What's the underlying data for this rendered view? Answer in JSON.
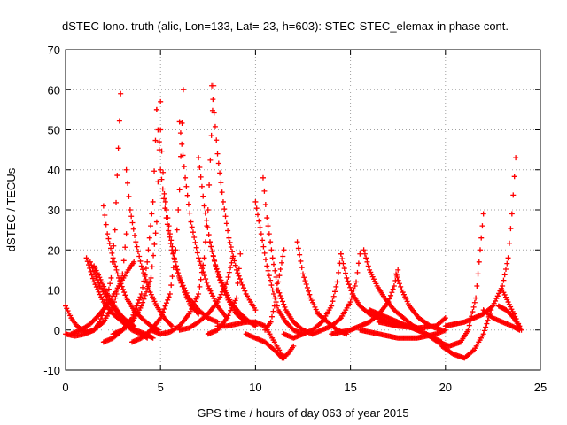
{
  "chart_data": {
    "type": "scatter",
    "title": "dSTEC Iono. truth (alic, Lon=133, Lat=-23, h=603): STEC-STEC_elemax in phase cont.",
    "xlabel": "GPS time / hours of day 063 of year 2015",
    "ylabel": "dSTEC  / TECUs",
    "xlim": [
      0,
      25
    ],
    "ylim": [
      -10,
      70
    ],
    "xticks": [
      0,
      5,
      10,
      15,
      20,
      25
    ],
    "yticks": [
      -10,
      0,
      10,
      20,
      30,
      40,
      50,
      60,
      70
    ],
    "grid": true,
    "marker": "plus",
    "color": "#ff0000",
    "series": [
      {
        "x": [
          0.0,
          0.3,
          0.6,
          0.9,
          1.2,
          1.5,
          1.8,
          2.1,
          2.4,
          2.6,
          2.9
        ],
        "values": [
          6,
          3,
          1,
          0,
          -0.5,
          0,
          2,
          6,
          13,
          25,
          59
        ]
      },
      {
        "x": [
          0.0,
          0.5,
          1.0,
          1.5,
          2.0,
          2.5,
          3.0,
          3.2
        ],
        "values": [
          -1,
          -1.5,
          -1,
          0,
          2,
          6,
          14,
          24
        ]
      },
      {
        "x": [
          0.3,
          0.8,
          1.3,
          1.8,
          2.3,
          2.8,
          3.3,
          3.6
        ],
        "values": [
          -1,
          0,
          1.5,
          4,
          7,
          11,
          15,
          17
        ]
      },
      {
        "x": [
          1.1,
          1.5,
          2.0,
          2.5,
          3.0,
          3.5,
          4.0,
          4.3
        ],
        "values": [
          18,
          12,
          7,
          4,
          2,
          0,
          -1,
          -2
        ]
      },
      {
        "x": [
          1.3,
          1.8,
          2.3,
          2.8,
          3.3,
          3.6
        ],
        "values": [
          17,
          11,
          7,
          4,
          2,
          1
        ]
      },
      {
        "x": [
          1.5,
          1.9,
          2.3,
          2.7,
          3.2,
          3.7,
          4.2,
          4.6
        ],
        "values": [
          16,
          12,
          8,
          5,
          2,
          0,
          -1,
          -2
        ]
      },
      {
        "x": [
          2.0,
          2.2,
          2.5,
          2.8,
          3.2,
          3.6,
          4.0,
          4.5,
          4.9
        ],
        "values": [
          31,
          24,
          18,
          13,
          8,
          5,
          3,
          1,
          0
        ]
      },
      {
        "x": [
          3.2,
          3.4,
          3.7,
          4.0,
          4.4,
          4.8,
          5.2,
          5.6
        ],
        "values": [
          40,
          30,
          22,
          16,
          10,
          6,
          3,
          1
        ]
      },
      {
        "x": [
          2.0,
          2.5,
          3.0,
          3.5,
          4.0,
          4.3,
          4.6,
          4.8
        ],
        "values": [
          -3,
          -2,
          0,
          3,
          9,
          17,
          32,
          55
        ]
      },
      {
        "x": [
          2.5,
          3.0,
          3.5,
          4.0,
          4.5,
          4.8,
          5.0
        ],
        "values": [
          -1,
          0,
          2,
          6,
          13,
          27,
          57
        ]
      },
      {
        "x": [
          4.8,
          5.0,
          5.3,
          5.6,
          6.0,
          6.5,
          7.0,
          7.5,
          8.0
        ],
        "values": [
          55,
          40,
          28,
          20,
          13,
          8,
          5,
          3,
          2
        ]
      },
      {
        "x": [
          5.0,
          5.2,
          5.5,
          5.8,
          6.2,
          6.6,
          7.0
        ],
        "values": [
          50,
          34,
          24,
          16,
          10,
          6,
          4
        ]
      },
      {
        "x": [
          3.5,
          4.0,
          4.5,
          5.0,
          5.5,
          5.8,
          6.0,
          6.2
        ],
        "values": [
          -3,
          -2,
          0,
          3,
          9,
          20,
          35,
          60
        ]
      },
      {
        "x": [
          4.5,
          5.0,
          5.5,
          6.0,
          6.5,
          7.0,
          7.3,
          7.5,
          7.8
        ],
        "values": [
          0,
          -1,
          -0.5,
          1,
          4,
          9,
          18,
          30,
          61
        ]
      },
      {
        "x": [
          6.0,
          6.3,
          6.6,
          7.0,
          7.5,
          8.0,
          8.5
        ],
        "values": [
          52,
          38,
          27,
          18,
          11,
          6,
          3
        ]
      },
      {
        "x": [
          7.0,
          7.3,
          7.6,
          8.0,
          8.5,
          9.0,
          9.5
        ],
        "values": [
          43,
          31,
          22,
          14,
          8,
          4,
          2
        ]
      },
      {
        "x": [
          7.7,
          8.0,
          8.3,
          8.6,
          9.0,
          9.5,
          10.0
        ],
        "values": [
          61,
          44,
          32,
          23,
          15,
          9,
          5
        ]
      },
      {
        "x": [
          6.0,
          6.5,
          7.0,
          7.5,
          8.0,
          8.5,
          8.8
        ],
        "values": [
          0,
          0.5,
          2,
          4,
          7,
          12,
          18
        ]
      },
      {
        "x": [
          7.5,
          8.0,
          8.5,
          9.0,
          9.2
        ],
        "values": [
          -1,
          0,
          3,
          8,
          19
        ]
      },
      {
        "x": [
          7.6,
          7.9,
          8.3,
          8.7,
          9.2,
          9.7,
          10.0
        ],
        "values": [
          22,
          16,
          11,
          7,
          4,
          2,
          1
        ]
      },
      {
        "x": [
          8.0,
          8.5,
          9.0,
          9.5,
          10.0,
          10.5,
          11.0,
          11.5
        ],
        "values": [
          1,
          1,
          1.5,
          2,
          2,
          1,
          -3,
          -7
        ]
      },
      {
        "x": [
          10.0,
          10.3,
          10.6,
          10.9,
          11.2,
          11.6,
          12.0,
          12.5
        ],
        "values": [
          32,
          24,
          16,
          10,
          5,
          2,
          0,
          -1
        ]
      },
      {
        "x": [
          10.4,
          10.6,
          10.9,
          11.2,
          11.6,
          12.0,
          12.5,
          13.0
        ],
        "values": [
          38,
          28,
          18,
          10,
          5,
          2,
          0,
          -1
        ]
      },
      {
        "x": [
          9.5,
          10.0,
          10.5,
          11.0,
          11.4,
          11.7,
          12.0
        ],
        "values": [
          -1,
          -2,
          -3,
          -5,
          -7,
          -6,
          -4
        ]
      },
      {
        "x": [
          10.5,
          10.8,
          11.0,
          11.2,
          11.5
        ],
        "values": [
          0,
          2,
          6,
          12,
          20
        ]
      },
      {
        "x": [
          12.2,
          12.5,
          12.9,
          13.3,
          13.8,
          14.3,
          14.8
        ],
        "values": [
          22,
          14,
          8,
          4,
          2,
          0,
          -1
        ]
      },
      {
        "x": [
          11.5,
          12.0,
          12.5,
          13.0,
          13.5,
          14.0,
          14.3,
          14.5
        ],
        "values": [
          -1,
          -2,
          -1,
          0,
          2,
          6,
          12,
          19
        ]
      },
      {
        "x": [
          14.5,
          14.8,
          15.1,
          15.5,
          16.0,
          16.5,
          17.0,
          17.5
        ],
        "values": [
          19,
          13,
          9,
          6,
          4,
          3,
          2,
          1
        ]
      },
      {
        "x": [
          13.0,
          13.5,
          14.0,
          14.5,
          15.0,
          15.3,
          15.5
        ],
        "values": [
          -1,
          0,
          1,
          3,
          7,
          12,
          19
        ]
      },
      {
        "x": [
          15.7,
          16.0,
          16.4,
          16.8,
          17.3,
          17.8,
          18.3,
          18.8
        ],
        "values": [
          20,
          15,
          11,
          8,
          5,
          3,
          1,
          0
        ]
      },
      {
        "x": [
          14.0,
          15.0,
          16.0,
          16.5,
          17.0,
          17.3,
          17.5
        ],
        "values": [
          -1,
          0,
          2,
          4,
          7,
          11,
          15
        ]
      },
      {
        "x": [
          17.4,
          17.7,
          18.1,
          18.6,
          19.2,
          19.8
        ],
        "values": [
          14,
          10,
          6,
          3,
          1,
          0
        ]
      },
      {
        "x": [
          15.5,
          16.5,
          17.5,
          18.5,
          19.5,
          20.0
        ],
        "values": [
          0,
          -1,
          -2,
          -2,
          -1,
          0
        ]
      },
      {
        "x": [
          16.5,
          17.5,
          18.5,
          19.5,
          20.0
        ],
        "values": [
          2,
          1,
          0.5,
          1,
          3
        ]
      },
      {
        "x": [
          16.0,
          17.0,
          18.0,
          19.0,
          19.8
        ],
        "values": [
          5,
          3,
          1,
          -1,
          -3
        ]
      },
      {
        "x": [
          19.0,
          19.6,
          20.2,
          20.8,
          21.2,
          21.6,
          22.0
        ],
        "values": [
          -1,
          -3,
          -4,
          -3,
          0,
          8,
          29
        ]
      },
      {
        "x": [
          19.8,
          20.4,
          21.0,
          21.5,
          22.0,
          22.4
        ],
        "values": [
          -4,
          -6,
          -7,
          -5,
          -1,
          5
        ]
      },
      {
        "x": [
          20.0,
          21.0,
          22.0,
          22.5,
          23.0,
          23.3,
          23.5,
          23.7
        ],
        "values": [
          1,
          2,
          4,
          6,
          11,
          18,
          29,
          43
        ]
      },
      {
        "x": [
          22.0,
          22.5,
          23.0,
          23.5,
          23.9
        ],
        "values": [
          5,
          3,
          2,
          1,
          0
        ]
      },
      {
        "x": [
          23.0,
          23.3,
          23.6,
          23.9
        ],
        "values": [
          10,
          7,
          4,
          1
        ]
      },
      {
        "x": [
          22.8,
          23.2,
          23.6,
          24.0
        ],
        "values": [
          6,
          5,
          3,
          0
        ]
      }
    ]
  }
}
